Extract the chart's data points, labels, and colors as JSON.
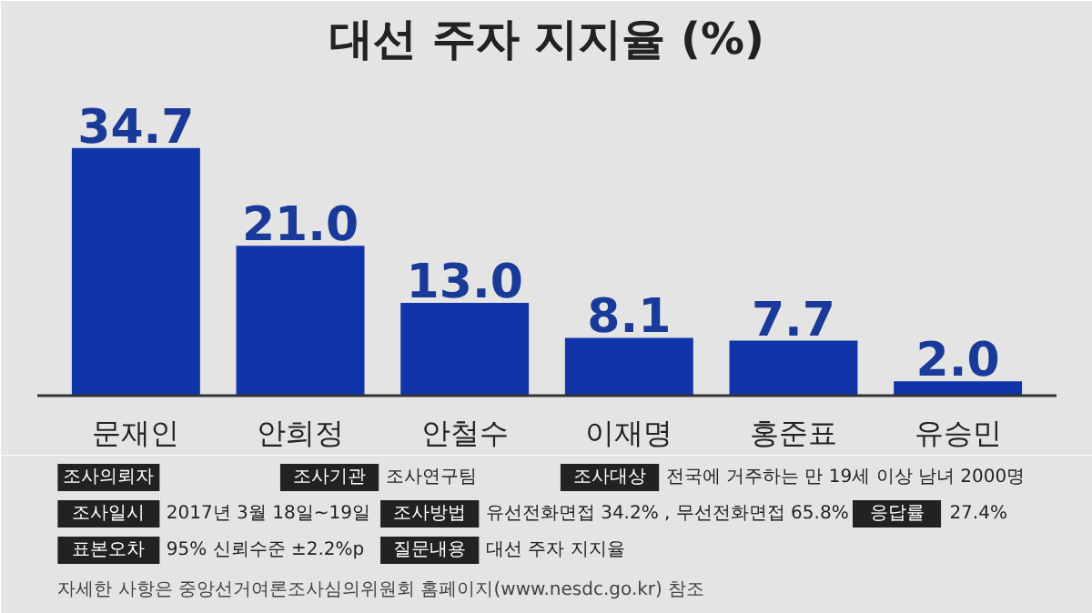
{
  "chart_data": {
    "type": "bar",
    "title": "대선 주자 지지율 (%)",
    "categories": [
      "문재인",
      "안희정",
      "안철수",
      "이재명",
      "홍준표",
      "유승민"
    ],
    "values": [
      34.7,
      21.0,
      13.0,
      8.1,
      7.7,
      2.0
    ],
    "value_labels": [
      "34.7",
      "21.0",
      "13.0",
      "8.1",
      "7.7",
      "2.0"
    ],
    "color": "#1035a8",
    "annotations": [
      "조사의뢰자",
      "조사기관",
      "조사연구팀",
      "조사대상",
      "전국에 거주하는 만 19세 이상 남녀 2000명",
      "조사일시",
      "2017년 3월 18일~19일",
      "조사방법",
      "유선전화면접 34.2% , 무선전화면접 65.8%",
      "응답률",
      "27.4%",
      "표본오차",
      "95% 신뢰수준 ±2.2%p",
      "질문내용",
      "대선 주자 지지율",
      "자세한 사항은 중앙선거여론조사심의위원회 홈페이지(www.nesdc.go.kr) 참조"
    ]
  }
}
